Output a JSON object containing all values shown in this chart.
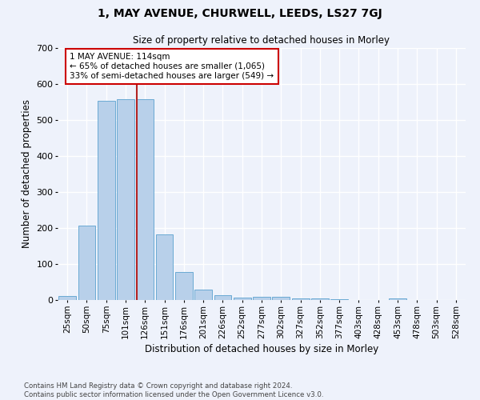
{
  "title": "1, MAY AVENUE, CHURWELL, LEEDS, LS27 7GJ",
  "subtitle": "Size of property relative to detached houses in Morley",
  "xlabel": "Distribution of detached houses by size in Morley",
  "ylabel": "Number of detached properties",
  "bar_labels": [
    "25sqm",
    "50sqm",
    "75sqm",
    "101sqm",
    "126sqm",
    "151sqm",
    "176sqm",
    "201sqm",
    "226sqm",
    "252sqm",
    "277sqm",
    "302sqm",
    "327sqm",
    "352sqm",
    "377sqm",
    "403sqm",
    "428sqm",
    "453sqm",
    "478sqm",
    "503sqm",
    "528sqm"
  ],
  "bar_values": [
    12,
    207,
    553,
    557,
    558,
    183,
    77,
    29,
    13,
    6,
    10,
    10,
    4,
    4,
    2,
    0,
    0,
    5,
    0,
    0,
    0
  ],
  "bar_color": "#b8d0ea",
  "bar_edgecolor": "#6aaad4",
  "vline_x": 3.56,
  "vline_color": "#b22222",
  "annotation_text": "1 MAY AVENUE: 114sqm\n← 65% of detached houses are smaller (1,065)\n33% of semi-detached houses are larger (549) →",
  "annotation_box_edgecolor": "#cc0000",
  "ylim": [
    0,
    700
  ],
  "yticks": [
    0,
    100,
    200,
    300,
    400,
    500,
    600,
    700
  ],
  "footer": "Contains HM Land Registry data © Crown copyright and database right 2024.\nContains public sector information licensed under the Open Government Licence v3.0.",
  "bg_color": "#eef2fb",
  "grid_color": "#ffffff",
  "plot_bg": "#eef2fb"
}
